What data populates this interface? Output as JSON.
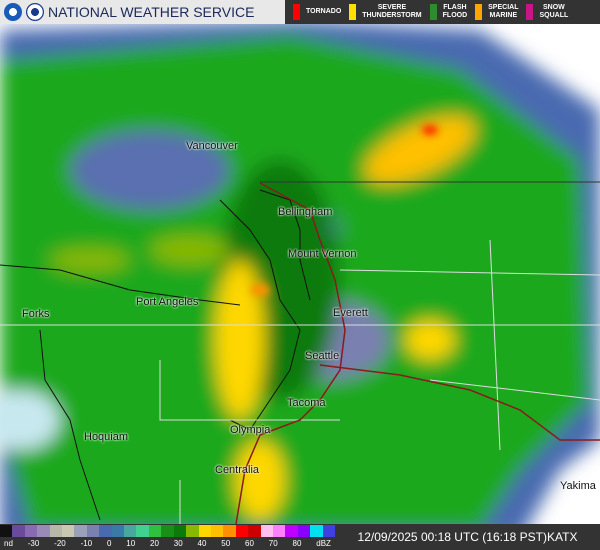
{
  "header": {
    "title": "NATIONAL WEATHER SERVICE"
  },
  "warnings_legend": [
    {
      "label": "TORNADO",
      "color": "#ff0000"
    },
    {
      "label": "SEVERE\nTHUNDERSTORM",
      "color": "#ffe000"
    },
    {
      "label": "FLASH\nFLOOD",
      "color": "#2e8b2e"
    },
    {
      "label": "SPECIAL\nMARINE",
      "color": "#ffa500"
    },
    {
      "label": "SNOW\nSQUALL",
      "color": "#c71585"
    }
  ],
  "cities": [
    "Vancouver",
    "Bellingham",
    "Mount Vernon",
    "Port Angeles",
    "Forks",
    "Everett",
    "Seattle",
    "Tacoma",
    "Olympia",
    "Hoquiam",
    "Centralia",
    "Yakima"
  ],
  "scale": {
    "ticks": [
      "nd",
      "-30",
      "-20",
      "-10",
      "0",
      "10",
      "20",
      "30",
      "40",
      "50",
      "60",
      "70",
      "80",
      "dBZ"
    ],
    "colors": [
      "#111111",
      "#6a4a9a",
      "#8a6ab0",
      "#9a8ab8",
      "#b8b8a8",
      "#c8c8b0",
      "#9aa0b8",
      "#7a80b0",
      "#4a6ab0",
      "#3a7aa8",
      "#48a8a0",
      "#40d090",
      "#30c040",
      "#189018",
      "#0a7a0a",
      "#88b800",
      "#ffd700",
      "#ffc000",
      "#ff9000",
      "#ff0000",
      "#cc0000",
      "#ffc0f0",
      "#ff80ff",
      "#c000ff",
      "#8800ff",
      "#00e0f0",
      "#4040e0"
    ]
  },
  "timestamp": "12/09/2025 00:18 UTC (16:18 PST)",
  "station": "KATX"
}
